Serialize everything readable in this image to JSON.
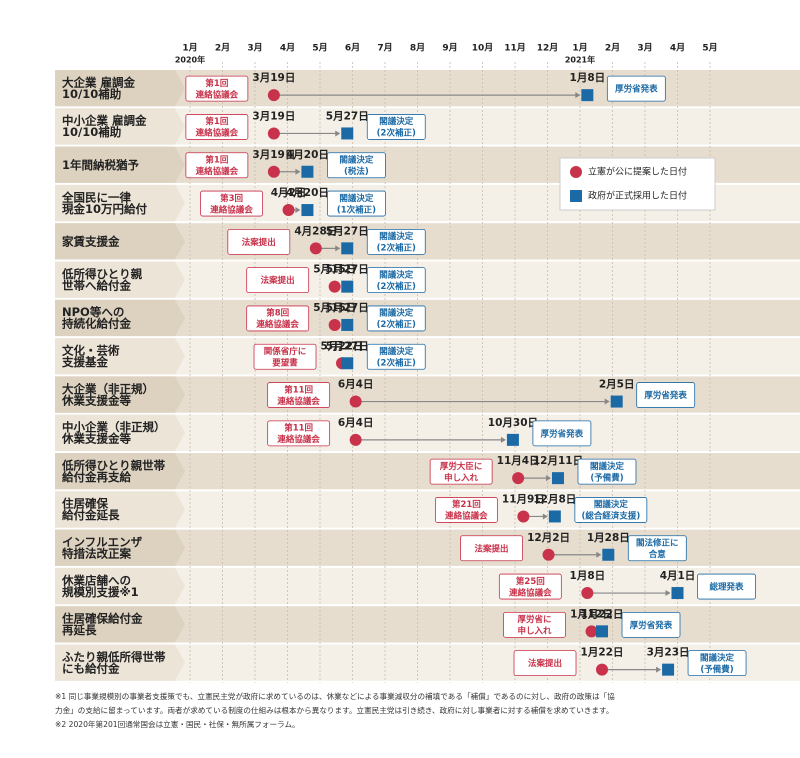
{
  "chart_data": {
    "type": "timeline",
    "axis": [
      {
        "month": "1月",
        "year": "2020年"
      },
      {
        "month": "2月"
      },
      {
        "month": "3月"
      },
      {
        "month": "4月"
      },
      {
        "month": "5月"
      },
      {
        "month": "6月"
      },
      {
        "month": "7月"
      },
      {
        "month": "8月"
      },
      {
        "month": "9月"
      },
      {
        "month": "10月"
      },
      {
        "month": "11月"
      },
      {
        "month": "12月"
      },
      {
        "month": "1月",
        "year": "2021年"
      },
      {
        "month": "2月"
      },
      {
        "month": "3月"
      },
      {
        "month": "4月"
      },
      {
        "month": "5月"
      }
    ],
    "legend": {
      "proposed": "立憲が公に提案した日付",
      "adopted": "政府が正式採用した日付"
    },
    "rows": [
      {
        "label": [
          "大企業 雇調金",
          "10/10補助"
        ],
        "event": [
          "第1回",
          "連絡協議会"
        ],
        "proposed": "3月19日",
        "adopted": "1月8日",
        "decision": [
          "厚労省発表"
        ]
      },
      {
        "label": [
          "中小企業 雇調金",
          "10/10補助"
        ],
        "event": [
          "第1回",
          "連絡協議会"
        ],
        "proposed": "3月19日",
        "adopted": "5月27日",
        "decision": [
          "閣議決定",
          "(2次補正)"
        ]
      },
      {
        "label": [
          "1年間納税猶予"
        ],
        "event": [
          "第1回",
          "連絡協議会"
        ],
        "proposed": "3月19日",
        "adopted": "4月20日",
        "decision": [
          "閣議決定",
          "(税法)"
        ]
      },
      {
        "label": [
          "全国民に一律",
          "現金10万円給付"
        ],
        "event": [
          "第3回",
          "連絡協議会"
        ],
        "proposed": "4月2日",
        "adopted": "4月20日",
        "decision": [
          "閣議決定",
          "(1次補正)"
        ]
      },
      {
        "label": [
          "家賃支援金"
        ],
        "event": [
          "法案提出"
        ],
        "proposed": "4月28日",
        "adopted": "5月27日",
        "decision": [
          "閣議決定",
          "(2次補正)"
        ]
      },
      {
        "label": [
          "低所得ひとり親",
          "世帯へ給付金"
        ],
        "event": [
          "法案提出"
        ],
        "proposed": "5月15日",
        "adopted": "5月27日",
        "decision": [
          "閣議決定",
          "(2次補正)"
        ]
      },
      {
        "label": [
          "NPO等への",
          "持続化給付金"
        ],
        "event": [
          "第8回",
          "連絡協議会"
        ],
        "proposed": "5月15日",
        "adopted": "5月27日",
        "decision": [
          "閣議決定",
          "(2次補正)"
        ]
      },
      {
        "label": [
          "文化・芸術",
          "支援基金"
        ],
        "event": [
          "関係省庁に",
          "要望書"
        ],
        "proposed": "5月22日",
        "adopted": "5月27日",
        "decision": [
          "閣議決定",
          "(2次補正)"
        ]
      },
      {
        "label": [
          "大企業（非正規）",
          "休業支援金等"
        ],
        "event": [
          "第11回",
          "連絡協議会"
        ],
        "proposed": "6月4日",
        "adopted": "2月5日",
        "decision": [
          "厚労省発表"
        ]
      },
      {
        "label": [
          "中小企業（非正規）",
          "休業支援金等"
        ],
        "event": [
          "第11回",
          "連絡協議会"
        ],
        "proposed": "6月4日",
        "adopted": "10月30日",
        "decision": [
          "厚労省発表"
        ]
      },
      {
        "label": [
          "低所得ひとり親世帯",
          "給付金再支給"
        ],
        "event": [
          "厚労大臣に",
          "申し入れ"
        ],
        "proposed": "11月4日",
        "adopted": "12月11日",
        "decision": [
          "閣議決定",
          "(予備費)"
        ]
      },
      {
        "label": [
          "住居確保",
          "給付金延長"
        ],
        "event": [
          "第21回",
          "連絡協議会"
        ],
        "proposed": "11月9日",
        "adopted": "12月8日",
        "decision": [
          "閣議決定",
          "(総合経済支援)"
        ]
      },
      {
        "label": [
          "インフルエンザ",
          "特措法改正案"
        ],
        "event": [
          "法案提出"
        ],
        "proposed": "12月2日",
        "adopted": "1月28日",
        "decision": [
          "閣法修正に",
          "合意"
        ]
      },
      {
        "label": [
          "休業店舗への",
          "規模別支援※1"
        ],
        "event": [
          "第25回",
          "連絡協議会"
        ],
        "proposed": "1月8日",
        "adopted": "4月1日",
        "decision": [
          "総理発表"
        ]
      },
      {
        "label": [
          "住居確保給付金",
          "再延長"
        ],
        "event": [
          "厚労省に",
          "申し入れ"
        ],
        "proposed": "1月12日",
        "adopted": "1月22日",
        "decision": [
          "厚労省発表"
        ]
      },
      {
        "label": [
          "ふたり親低所得世帯",
          "にも給付金"
        ],
        "event": [
          "法案提出"
        ],
        "proposed": "1月22日",
        "adopted": "3月23日",
        "decision": [
          "閣議決定",
          "(予備費)"
        ]
      }
    ],
    "notes": [
      "※1 同じ事業規模別の事業者支援策でも、立憲民主党が政府に求めているのは、休業などによる事業減収分の補填である「補償」であるのに対し、政府の政策は「協",
      "力金」の支給に留まっています。両者が求めている制度の仕組みは根本から異なります。立憲民主党は引き続き、政府に対し事業者に対する補償を求めていきます。",
      "※2 2020年第201回通常国会は立憲・国民・社保・無所属フォーラム。"
    ]
  }
}
